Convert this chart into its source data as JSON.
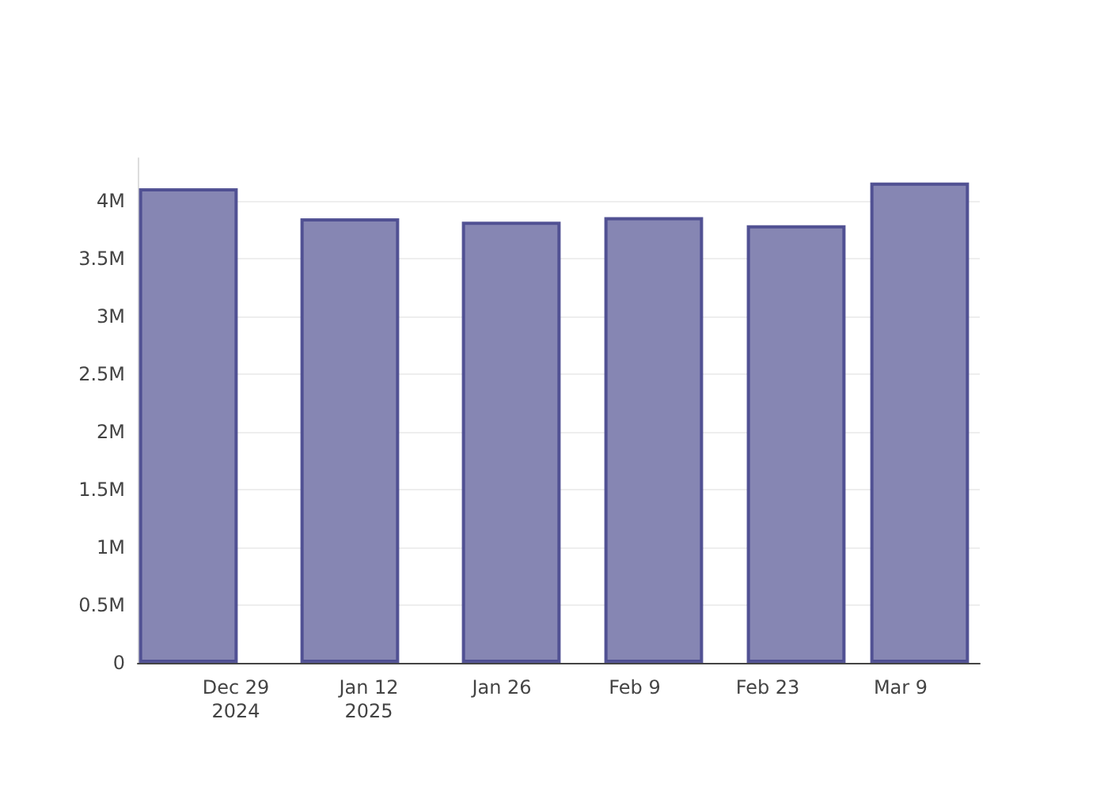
{
  "chart_data": {
    "type": "bar",
    "x": [
      "2024-12-24",
      "2025-01-10",
      "2025-01-27",
      "2025-02-11",
      "2025-02-26",
      "2025-03-11"
    ],
    "values": [
      4110000,
      3850000,
      3820000,
      3860000,
      3790000,
      4160000
    ],
    "color": "#7f7faf",
    "xlim": [
      "2024-12-18T16:00",
      "2025-03-17T08:00"
    ],
    "xticks": [
      {
        "value": "2024-12-29",
        "label": "Dec 29\n2024"
      },
      {
        "value": "2025-01-12",
        "label": "Jan 12\n2025"
      },
      {
        "value": "2025-01-26",
        "label": "Jan 26"
      },
      {
        "value": "2025-02-09",
        "label": "Feb 9"
      },
      {
        "value": "2025-02-23",
        "label": "Feb 23"
      },
      {
        "value": "2025-03-09",
        "label": "Mar 9"
      }
    ],
    "yticks": [
      0,
      {
        "value": 500000,
        "label": "0.5M"
      },
      {
        "value": 1000000,
        "label": "1M"
      },
      {
        "value": 1500000,
        "label": "1.5M"
      },
      {
        "value": 2000000,
        "label": "2M"
      },
      {
        "value": 2500000,
        "label": "2.5M"
      },
      {
        "value": 3000000,
        "label": "3M"
      },
      {
        "value": 3500000,
        "label": "3.5M"
      },
      {
        "value": 4000000,
        "label": "4M"
      }
    ],
    "ylim": [
      0,
      4370000
    ],
    "grid": "y"
  }
}
